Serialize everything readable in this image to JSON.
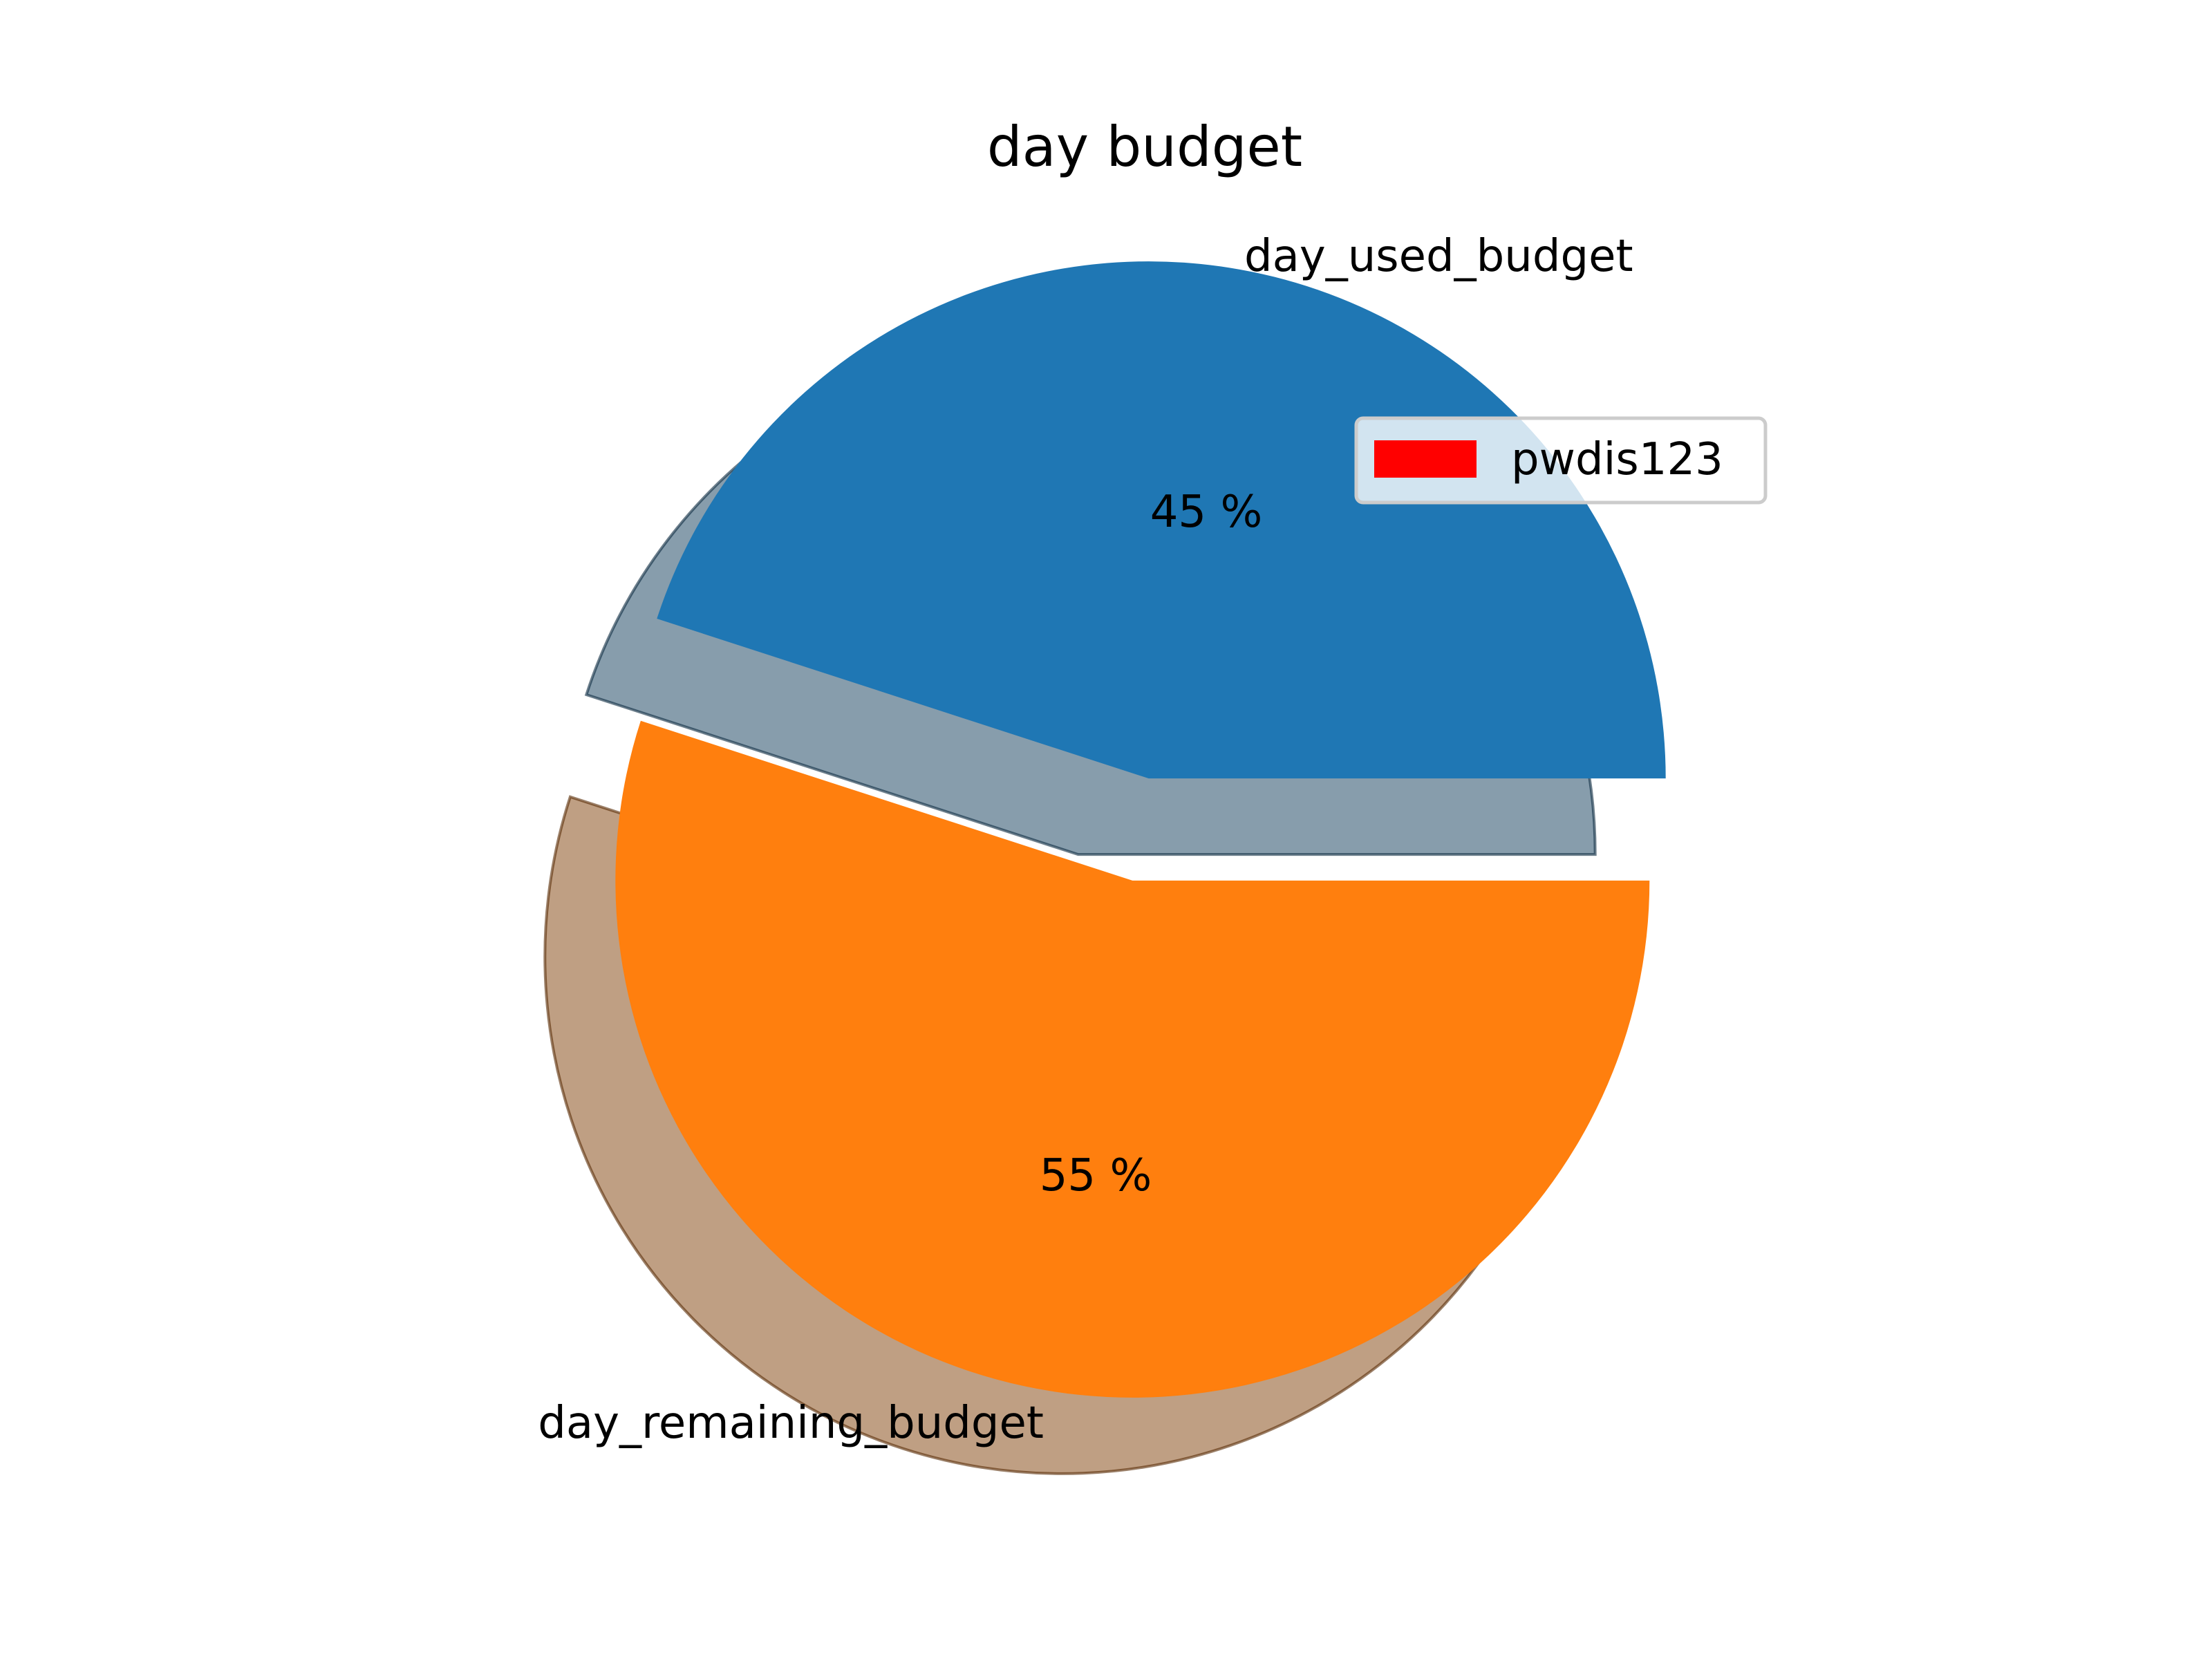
{
  "chart_data": {
    "type": "pie",
    "title": "day budget",
    "slices": [
      {
        "label": "day_used_budget",
        "value": 45,
        "pct_label": "45 %",
        "color": "#1f77b4"
      },
      {
        "label": "day_remaining_budget",
        "value": 55,
        "pct_label": "55 %",
        "color": "#ff7f0e"
      }
    ],
    "exploded": true,
    "shadow": true,
    "legend": {
      "entries": [
        {
          "name": "pwdis123",
          "color": "#ff0000"
        }
      ],
      "placement": "upper-right"
    }
  }
}
